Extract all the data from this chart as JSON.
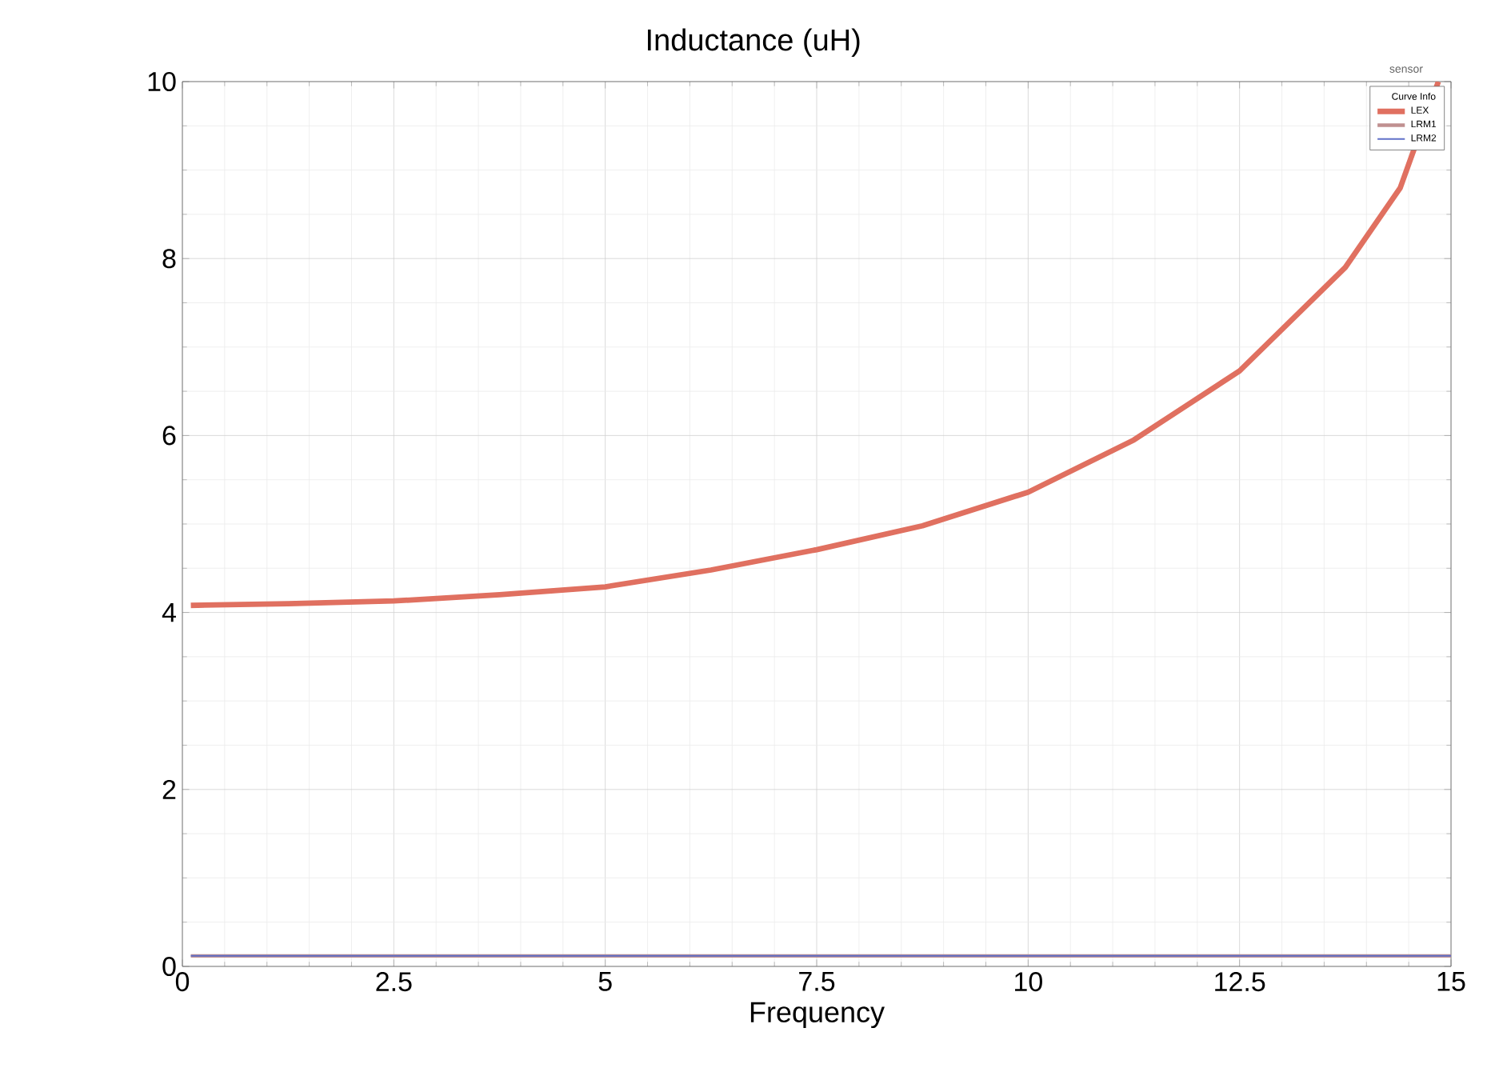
{
  "chart_data": {
    "type": "line",
    "title": "Inductance (uH)",
    "xlabel": "Frequency",
    "annotations": [
      "sensor"
    ],
    "legend_title": "Curve Info",
    "legend": "top right",
    "grid": true,
    "marker": "none",
    "line_style": "solid",
    "xlim": [
      0,
      15
    ],
    "xticks": [
      0,
      2.5,
      5,
      7.5,
      10,
      12.5,
      15
    ],
    "ylim": [
      0,
      10
    ],
    "yticks": [
      0,
      2,
      4,
      6,
      8,
      10
    ],
    "series": [
      {
        "name": "LEX",
        "color": "#e07060",
        "x": [
          0.1,
          1.25,
          2.5,
          3.75,
          5,
          6.25,
          7.5,
          8.75,
          10,
          11.25,
          12.5,
          13.75,
          14.4,
          14.85
        ],
        "values": [
          4.08,
          4.1,
          4.13,
          4.2,
          4.29,
          4.48,
          4.71,
          4.98,
          5.36,
          5.95,
          6.73,
          7.9,
          8.8,
          10
        ]
      },
      {
        "name": "LRM1",
        "color": "#c09090",
        "x": [
          0.1,
          15
        ],
        "values": [
          0.12,
          0.12
        ]
      },
      {
        "name": "LRM2",
        "color": "#6070c8",
        "x": [
          0.1,
          15
        ],
        "values": [
          0.12,
          0.12
        ]
      }
    ]
  }
}
